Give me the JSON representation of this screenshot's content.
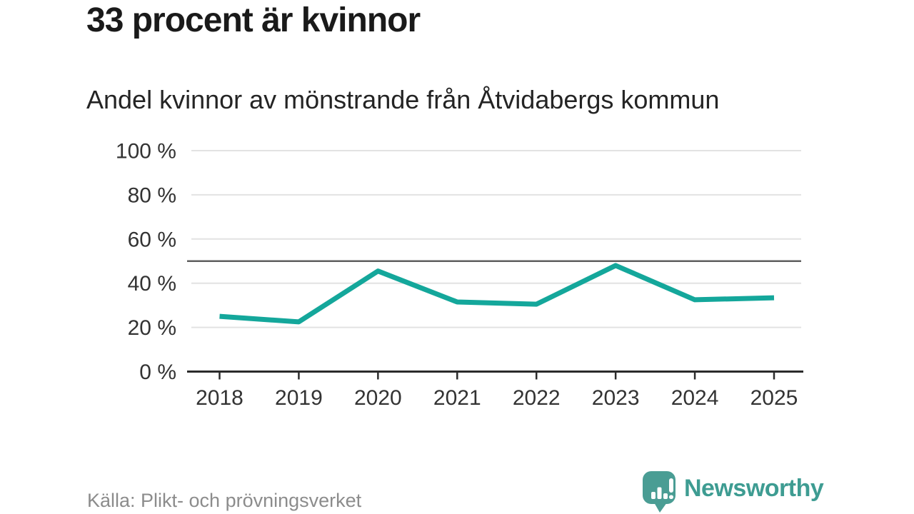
{
  "header": {
    "title": "33 procent är kvinnor",
    "subtitle": "Andel kvinnor av mönstrande från Åtvidabergs kommun"
  },
  "footer": {
    "source": "Källa: Plikt- och prövningsverket",
    "brand": "Newsworthy",
    "logo_icon": "bar-chart-speech-bubble-icon"
  },
  "colors": {
    "line": "#14a79b",
    "grid": "#e2e2e2",
    "reference": "#5f5f5f",
    "axis": "#2b2b2b",
    "label": "#333333",
    "title": "#1a1a1a",
    "source": "#8c8c8c",
    "brand": "#3e9c92",
    "logo": "#4a9d94"
  },
  "chart_data": {
    "type": "line",
    "title": "33 procent är kvinnor",
    "subtitle": "Andel kvinnor av mönstrande från Åtvidabergs kommun",
    "x": [
      "2018",
      "2019",
      "2020",
      "2021",
      "2022",
      "2023",
      "2024",
      "2025"
    ],
    "series": [
      {
        "name": "Andel kvinnor av mönstrande",
        "values": [
          25,
          22.5,
          45.5,
          31.5,
          30.5,
          48,
          32.5,
          33.4
        ]
      }
    ],
    "xlabel": "",
    "ylabel": "",
    "ylim": [
      0,
      100
    ],
    "yticks": [
      0,
      20,
      40,
      60,
      80,
      100
    ],
    "ytick_labels": [
      "0 %",
      "20 %",
      "40 %",
      "60 %",
      "80 %",
      "100 %"
    ],
    "reference_line": {
      "value": 50
    },
    "grid": true,
    "legend": "none",
    "unit": "%"
  }
}
